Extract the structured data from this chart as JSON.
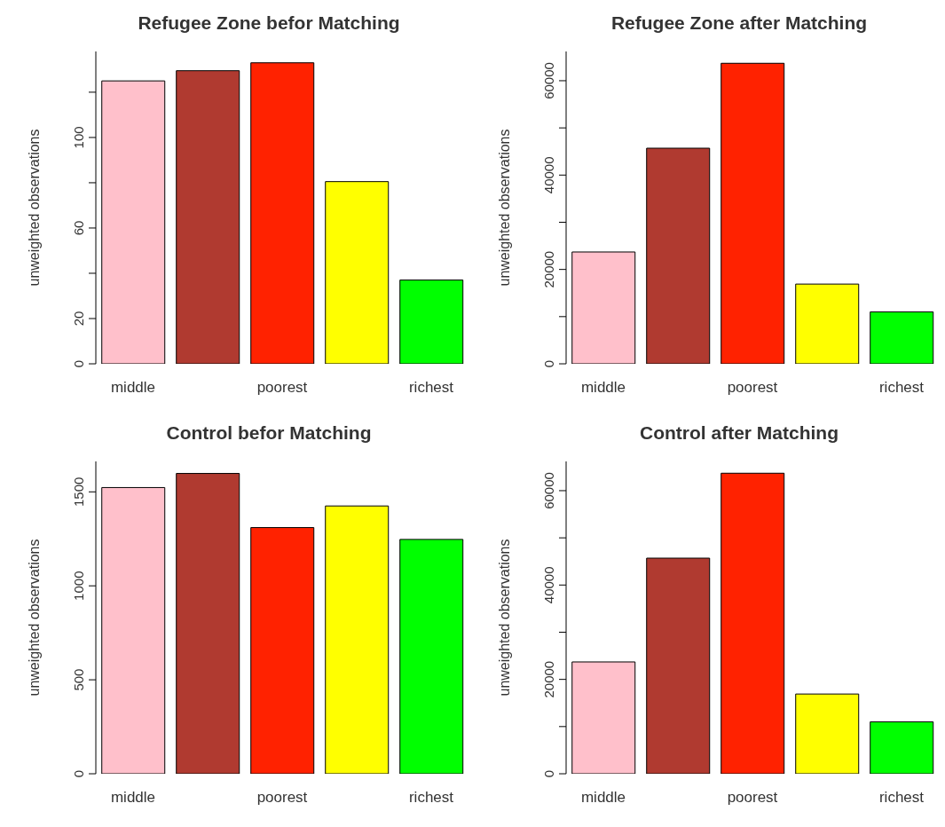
{
  "chart_data": [
    {
      "type": "bar",
      "title": "Refugee Zone befor Matching",
      "ylabel": "unweighted observations",
      "categories": [
        "middle",
        null,
        "poorest",
        null,
        "richest"
      ],
      "values": [
        125,
        129.5,
        133,
        80.5,
        37
      ],
      "colors": [
        "#ffc0cb",
        "#b03a30",
        "#ff2200",
        "#ffff00",
        "#00ff00"
      ],
      "ylim": [
        0,
        138
      ],
      "yticks": [
        0,
        20,
        {
          "value": 40,
          "label": null
        },
        60,
        {
          "value": 80,
          "label": null
        },
        100,
        {
          "value": 120,
          "label": null
        }
      ],
      "grid": false,
      "legend": false
    },
    {
      "type": "bar",
      "title": "Refugee Zone after Matching",
      "ylabel": "unweighted observations",
      "categories": [
        "middle",
        null,
        "poorest",
        null,
        "richest"
      ],
      "values": [
        23700,
        45700,
        63700,
        16900,
        11000
      ],
      "colors": [
        "#ffc0cb",
        "#b03a30",
        "#ff2200",
        "#ffff00",
        "#00ff00"
      ],
      "ylim": [
        0,
        66200
      ],
      "yticks": [
        0,
        {
          "value": 10000,
          "label": null
        },
        20000,
        {
          "value": 30000,
          "label": null
        },
        40000,
        {
          "value": 50000,
          "label": null
        },
        60000
      ],
      "grid": false,
      "legend": false
    },
    {
      "type": "bar",
      "title": "Control befor Matching",
      "ylabel": "unweighted observations",
      "categories": [
        "middle",
        null,
        "poorest",
        null,
        "richest"
      ],
      "values": [
        1523,
        1598,
        1310,
        1425,
        1247
      ],
      "colors": [
        "#ffc0cb",
        "#b03a30",
        "#ff2200",
        "#ffff00",
        "#00ff00"
      ],
      "ylim": [
        0,
        1662
      ],
      "yticks": [
        0,
        500,
        1000,
        1500
      ],
      "grid": false,
      "legend": false
    },
    {
      "type": "bar",
      "title": "Control after Matching",
      "ylabel": "unweighted observations",
      "categories": [
        "middle",
        null,
        "poorest",
        null,
        "richest"
      ],
      "values": [
        23700,
        45700,
        63700,
        16900,
        11000
      ],
      "colors": [
        "#ffc0cb",
        "#b03a30",
        "#ff2200",
        "#ffff00",
        "#00ff00"
      ],
      "ylim": [
        0,
        66200
      ],
      "yticks": [
        0,
        {
          "value": 10000,
          "label": null
        },
        20000,
        {
          "value": 30000,
          "label": null
        },
        40000,
        {
          "value": 50000,
          "label": null
        },
        60000
      ],
      "grid": false,
      "legend": false
    }
  ]
}
